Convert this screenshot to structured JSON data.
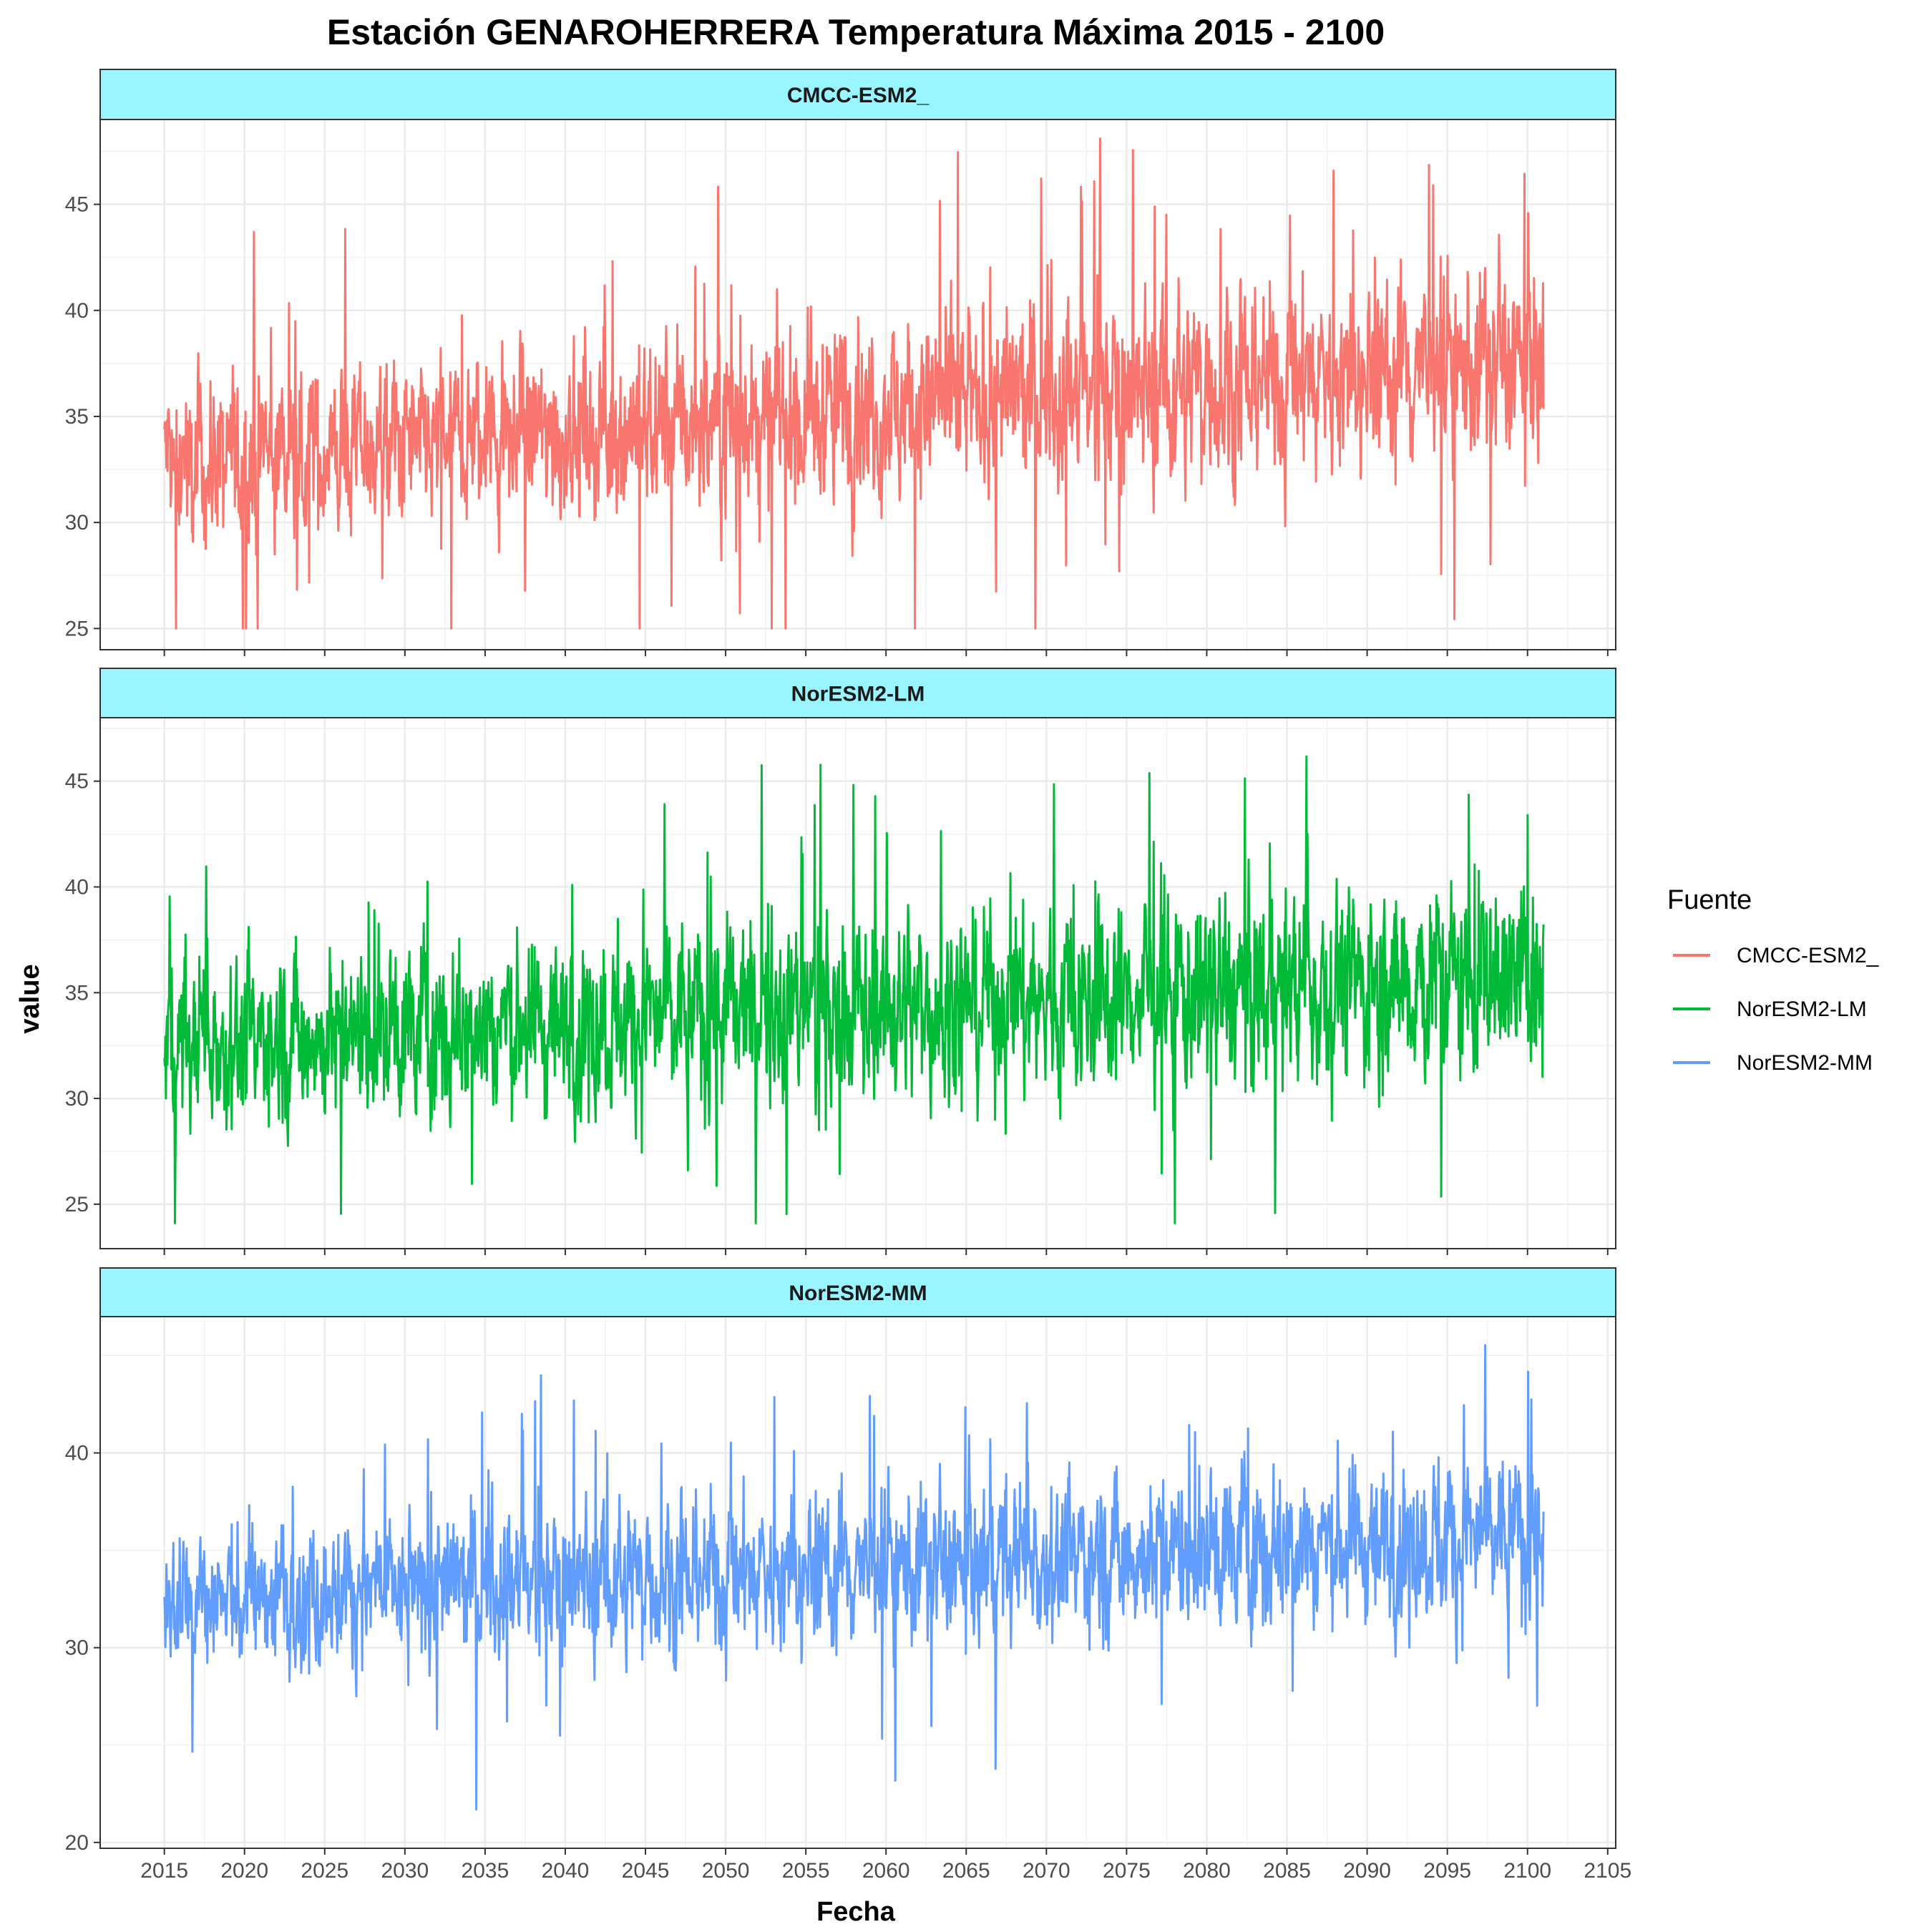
{
  "chart_data": {
    "type": "line",
    "title": "Estación GENAROHERRERA Temperatura Máxima 2015 - 2100",
    "xlabel": "Fecha",
    "ylabel": "value",
    "xlim": [
      2011,
      2105.5
    ],
    "x_ticks": [
      2015,
      2020,
      2025,
      2030,
      2035,
      2040,
      2045,
      2050,
      2055,
      2060,
      2065,
      2070,
      2075,
      2080,
      2085,
      2090,
      2095,
      2100,
      2105
    ],
    "x_range": [
      2015,
      2101
    ],
    "grid": true,
    "legend": {
      "title": "Fuente",
      "position": "right",
      "entries": [
        "CMCC-ESM2_",
        "NorESM2-LM",
        "NorESM2-MM"
      ]
    },
    "panels": [
      {
        "facet": "CMCC-ESM2_",
        "color": "#F8766D",
        "ylim": [
          24,
          49
        ],
        "y_ticks": [
          25,
          30,
          35,
          40,
          45
        ],
        "trend_start": 32.7,
        "trend_end": 37.8,
        "spread_start": 3.2,
        "spread_end": 3.8,
        "min": 25.0,
        "max": 48.1
      },
      {
        "facet": "NorESM2-LM",
        "color": "#00BA38",
        "ylim": [
          22.9,
          48
        ],
        "y_ticks": [
          25,
          30,
          35,
          40,
          45
        ],
        "trend_start": 32.6,
        "trend_end": 35.9,
        "spread_start": 3.3,
        "spread_end": 3.9,
        "min": 24.1,
        "max": 46.9
      },
      {
        "facet": "NorESM2-MM",
        "color": "#619CFF",
        "ylim": [
          19.7,
          47
        ],
        "y_ticks": [
          20,
          30,
          40
        ],
        "trend_start": 32.5,
        "trend_end": 35.8,
        "spread_start": 3.0,
        "spread_end": 3.5,
        "min": 20.8,
        "max": 45.7
      }
    ]
  }
}
